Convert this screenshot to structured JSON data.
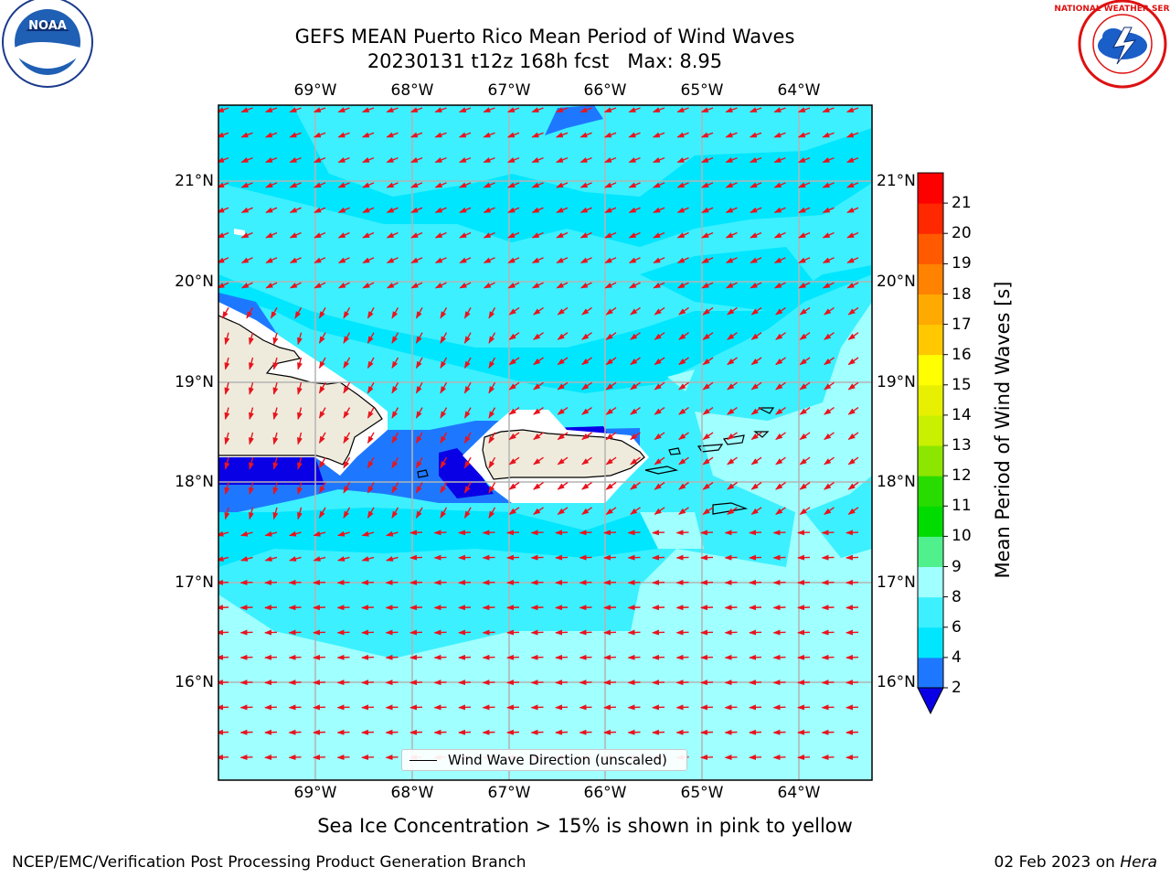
{
  "title": {
    "line1": "GEFS MEAN Puerto Rico Mean Period of Wind Waves",
    "line2": "20230131 t12z 168h fcst   Max: 8.95"
  },
  "axes": {
    "lon_labels": [
      "69°W",
      "68°W",
      "67°W",
      "66°W",
      "65°W",
      "64°W"
    ],
    "lat_labels": [
      "21°N",
      "20°N",
      "19°N",
      "18°N",
      "17°N",
      "16°N"
    ]
  },
  "colorbar": {
    "label": "Mean Period of Wind Waves [s]",
    "ticks": [
      "2",
      "4",
      "6",
      "8",
      "9",
      "10",
      "11",
      "12",
      "13",
      "14",
      "15",
      "16",
      "17",
      "18",
      "19",
      "20",
      "21"
    ],
    "colors": [
      "#0a00e6",
      "#1e78ff",
      "#00e6ff",
      "#3cf0ff",
      "#a0ffff",
      "#50f08c",
      "#00dc00",
      "#28dc00",
      "#8ce600",
      "#c8f000",
      "#e6f000",
      "#ffff00",
      "#ffc800",
      "#ffaa00",
      "#ff8200",
      "#ff5a00",
      "#ff2800",
      "#ff0000"
    ]
  },
  "legend": {
    "label": "Wind Wave Direction (unscaled)"
  },
  "note": "Sea Ice Concentration > 15% is shown in pink to yellow",
  "footer": {
    "left": "NCEP/EMC/Verification Post Processing Product Generation Branch",
    "right_date": "02 Feb 2023 on ",
    "right_machine": "Hera"
  },
  "logos": {
    "noaa": "NOAA",
    "nws": "NATIONAL WEATHER SERVICE"
  },
  "colors": {
    "arrow": "#e8141e",
    "land": "#efebdc",
    "grid": "#b4b4b4"
  }
}
